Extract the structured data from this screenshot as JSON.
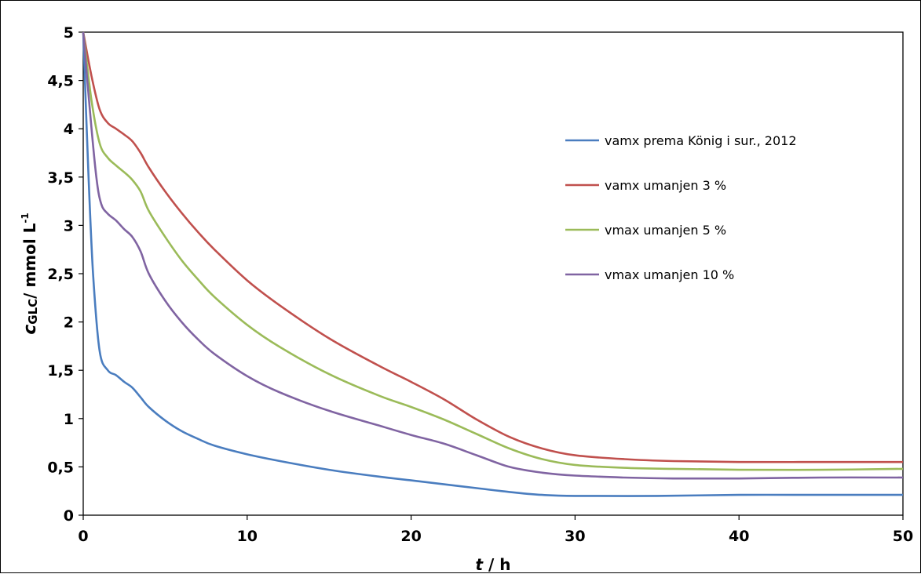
{
  "chart_data": {
    "type": "line",
    "xlabel": {
      "var": "t",
      "rest": " / h"
    },
    "ylabel": {
      "var": "c",
      "sub": "GLC",
      "rest": "/ mmol L",
      "sup": "-1"
    },
    "xlim": [
      0,
      50
    ],
    "ylim": [
      0,
      5
    ],
    "x_ticks": [
      "0",
      "10",
      "20",
      "30",
      "40",
      "50"
    ],
    "y_ticks": [
      "0",
      "0,5",
      "1",
      "1,5",
      "2",
      "2,5",
      "3",
      "3,5",
      "4",
      "4,5",
      "5"
    ],
    "grid": false,
    "legend_position": "top-right",
    "series": [
      {
        "name": "vamx prema König i sur., 2012",
        "color": "#4a7dbf",
        "points": [
          [
            0,
            5
          ],
          [
            0.3,
            3.6
          ],
          [
            0.6,
            2.5
          ],
          [
            1,
            1.7
          ],
          [
            1.5,
            1.5
          ],
          [
            2,
            1.45
          ],
          [
            2.5,
            1.38
          ],
          [
            3,
            1.32
          ],
          [
            3.5,
            1.22
          ],
          [
            4,
            1.12
          ],
          [
            5,
            0.98
          ],
          [
            6,
            0.87
          ],
          [
            7,
            0.79
          ],
          [
            8,
            0.72
          ],
          [
            10,
            0.63
          ],
          [
            12,
            0.56
          ],
          [
            15,
            0.47
          ],
          [
            18,
            0.4
          ],
          [
            20,
            0.36
          ],
          [
            22,
            0.32
          ],
          [
            24,
            0.28
          ],
          [
            26,
            0.24
          ],
          [
            28,
            0.21
          ],
          [
            30,
            0.2
          ],
          [
            35,
            0.2
          ],
          [
            40,
            0.21
          ],
          [
            45,
            0.21
          ],
          [
            50,
            0.21
          ]
        ]
      },
      {
        "name": "vamx umanjen 3 %",
        "color": "#c0504d",
        "points": [
          [
            0,
            5
          ],
          [
            0.5,
            4.55
          ],
          [
            1,
            4.2
          ],
          [
            1.5,
            4.06
          ],
          [
            2,
            4.0
          ],
          [
            2.5,
            3.94
          ],
          [
            3,
            3.87
          ],
          [
            3.5,
            3.75
          ],
          [
            4,
            3.6
          ],
          [
            5,
            3.35
          ],
          [
            6,
            3.13
          ],
          [
            7,
            2.93
          ],
          [
            8,
            2.75
          ],
          [
            10,
            2.43
          ],
          [
            12,
            2.17
          ],
          [
            15,
            1.83
          ],
          [
            18,
            1.55
          ],
          [
            20,
            1.38
          ],
          [
            22,
            1.2
          ],
          [
            24,
            0.99
          ],
          [
            26,
            0.81
          ],
          [
            28,
            0.69
          ],
          [
            30,
            0.62
          ],
          [
            33,
            0.58
          ],
          [
            36,
            0.56
          ],
          [
            40,
            0.55
          ],
          [
            45,
            0.55
          ],
          [
            50,
            0.55
          ]
        ]
      },
      {
        "name": "vmax umanjen 5 %",
        "color": "#9bbb59",
        "points": [
          [
            0,
            5
          ],
          [
            0.5,
            4.3
          ],
          [
            1,
            3.85
          ],
          [
            1.5,
            3.7
          ],
          [
            2,
            3.62
          ],
          [
            2.5,
            3.55
          ],
          [
            3,
            3.47
          ],
          [
            3.5,
            3.35
          ],
          [
            4,
            3.15
          ],
          [
            5,
            2.88
          ],
          [
            6,
            2.64
          ],
          [
            7,
            2.44
          ],
          [
            8,
            2.26
          ],
          [
            10,
            1.97
          ],
          [
            12,
            1.74
          ],
          [
            15,
            1.46
          ],
          [
            18,
            1.24
          ],
          [
            20,
            1.12
          ],
          [
            22,
            0.99
          ],
          [
            24,
            0.84
          ],
          [
            26,
            0.69
          ],
          [
            28,
            0.58
          ],
          [
            30,
            0.52
          ],
          [
            33,
            0.49
          ],
          [
            36,
            0.48
          ],
          [
            40,
            0.47
          ],
          [
            45,
            0.47
          ],
          [
            50,
            0.48
          ]
        ]
      },
      {
        "name": "vmax umanjen 10 %",
        "color": "#8064a2",
        "points": [
          [
            0,
            5
          ],
          [
            0.4,
            4.2
          ],
          [
            0.8,
            3.5
          ],
          [
            1.1,
            3.22
          ],
          [
            1.5,
            3.12
          ],
          [
            2,
            3.05
          ],
          [
            2.5,
            2.96
          ],
          [
            3,
            2.88
          ],
          [
            3.5,
            2.73
          ],
          [
            4,
            2.5
          ],
          [
            5,
            2.22
          ],
          [
            6,
            2.0
          ],
          [
            7,
            1.82
          ],
          [
            8,
            1.67
          ],
          [
            10,
            1.44
          ],
          [
            12,
            1.27
          ],
          [
            15,
            1.08
          ],
          [
            18,
            0.93
          ],
          [
            20,
            0.83
          ],
          [
            22,
            0.74
          ],
          [
            24,
            0.62
          ],
          [
            26,
            0.5
          ],
          [
            28,
            0.44
          ],
          [
            30,
            0.41
          ],
          [
            33,
            0.39
          ],
          [
            36,
            0.38
          ],
          [
            40,
            0.38
          ],
          [
            45,
            0.39
          ],
          [
            50,
            0.39
          ]
        ]
      }
    ]
  }
}
